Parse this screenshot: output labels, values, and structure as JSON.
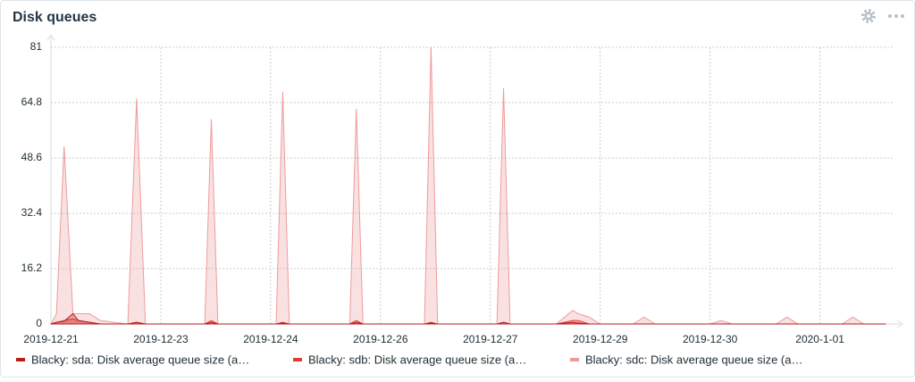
{
  "chart_data": {
    "type": "area",
    "title": "Disk queues",
    "x": [
      0,
      0.05,
      0.12,
      0.2,
      0.25,
      0.35,
      0.45,
      0.7,
      0.78,
      0.86,
      1.4,
      1.46,
      1.52,
      2.05,
      2.11,
      2.17,
      2.72,
      2.78,
      2.84,
      3.4,
      3.46,
      3.52,
      4.06,
      4.12,
      4.18,
      4.6,
      4.75,
      4.8,
      4.9,
      5.0,
      5.3,
      5.4,
      5.5,
      6.0,
      6.1,
      6.2,
      6.6,
      6.7,
      6.8,
      7.2,
      7.3,
      7.4,
      7.6
    ],
    "series": [
      {
        "name": "Blacky: sda: Disk average queue size (a…",
        "color": "#b71c1c",
        "values": [
          0,
          0.5,
          0.8,
          3,
          1,
          0.5,
          0,
          0,
          0.5,
          0,
          0,
          0.5,
          0,
          0,
          0.3,
          0,
          0,
          0.5,
          0,
          0,
          0.3,
          0,
          0,
          0.5,
          0,
          0,
          0.5,
          0.3,
          0,
          0,
          0,
          0,
          0,
          0,
          0,
          0,
          0,
          0,
          0,
          0,
          0,
          0,
          0
        ]
      },
      {
        "name": "Blacky: sdb: Disk average queue size (a…",
        "color": "#e53935",
        "values": [
          0,
          0.5,
          1,
          1.5,
          1,
          0.5,
          0,
          0,
          0.5,
          0,
          0,
          1,
          0,
          0,
          0.5,
          0,
          0,
          1,
          0,
          0,
          0.5,
          0,
          0,
          0.5,
          0,
          0,
          1,
          1,
          0,
          0,
          0,
          0,
          0,
          0,
          0,
          0,
          0,
          0,
          0,
          0,
          0,
          0,
          0
        ]
      },
      {
        "name": "Blacky: sdc: Disk average queue size (a…",
        "color": "#ef9a9a",
        "values": [
          0,
          3,
          52,
          3,
          3,
          3,
          1,
          0,
          66,
          0,
          0,
          60,
          0,
          0,
          68,
          0,
          0,
          63,
          0,
          0,
          81,
          0,
          0,
          69,
          0,
          0,
          4,
          3,
          2,
          0,
          0,
          2,
          0,
          0,
          1,
          0,
          0,
          2,
          0,
          0,
          2,
          0,
          0
        ]
      }
    ],
    "xlim": [
      0,
      7.67
    ],
    "xticks": [
      {
        "value": 0,
        "label": "2019-12-21"
      },
      {
        "value": 1,
        "label": "2019-12-23"
      },
      {
        "value": 2,
        "label": "2019-12-24"
      },
      {
        "value": 3,
        "label": "2019-12-26"
      },
      {
        "value": 4,
        "label": "2019-12-27"
      },
      {
        "value": 5,
        "label": "2019-12-29"
      },
      {
        "value": 6,
        "label": "2019-12-30"
      },
      {
        "value": 7,
        "label": "2020-1-01"
      }
    ],
    "ylim": [
      0,
      81
    ],
    "yticks": [
      0,
      16.2,
      32.4,
      48.6,
      64.8,
      81
    ],
    "grid": true
  }
}
